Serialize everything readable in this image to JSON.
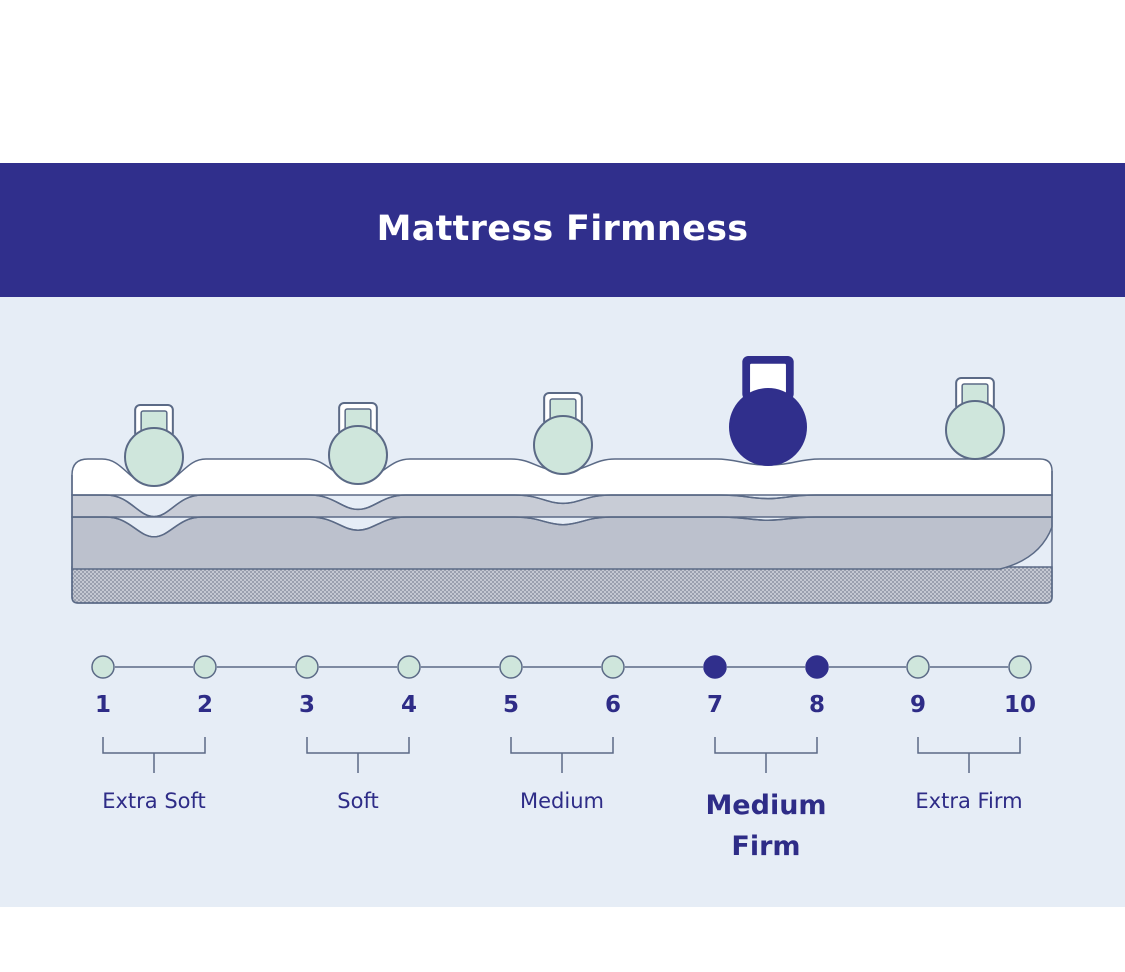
{
  "title": "Mattress Firmness",
  "colors": {
    "header_bg": "#302f8c",
    "panel_bg": "#e6edf6",
    "accent": "#302f8c",
    "inactive_fill": "#cfe6dc",
    "outline": "#5b6a86",
    "foam_top": "#ffffff",
    "foam_mid": "#c8ccd6",
    "foam_low": "#bcc1cd",
    "base_pattern": "#9aa0b0"
  },
  "scale": {
    "points": [
      "1",
      "2",
      "3",
      "4",
      "5",
      "6",
      "7",
      "8",
      "9",
      "10"
    ],
    "active_points": [
      7,
      8
    ]
  },
  "levels": [
    {
      "label": "Extra Soft",
      "active": false
    },
    {
      "label": "Soft",
      "active": false
    },
    {
      "label": "Medium",
      "active": false
    },
    {
      "label": "Medium Firm",
      "active": true
    },
    {
      "label": "Extra Firm",
      "active": false
    }
  ],
  "weights": [
    {
      "icon": "kettlebell-icon",
      "level": "Extra Soft",
      "active": false
    },
    {
      "icon": "kettlebell-icon",
      "level": "Soft",
      "active": false
    },
    {
      "icon": "kettlebell-icon",
      "level": "Medium",
      "active": false
    },
    {
      "icon": "kettlebell-icon",
      "level": "Medium Firm",
      "active": true
    },
    {
      "icon": "kettlebell-icon",
      "level": "Extra Firm",
      "active": false
    }
  ]
}
